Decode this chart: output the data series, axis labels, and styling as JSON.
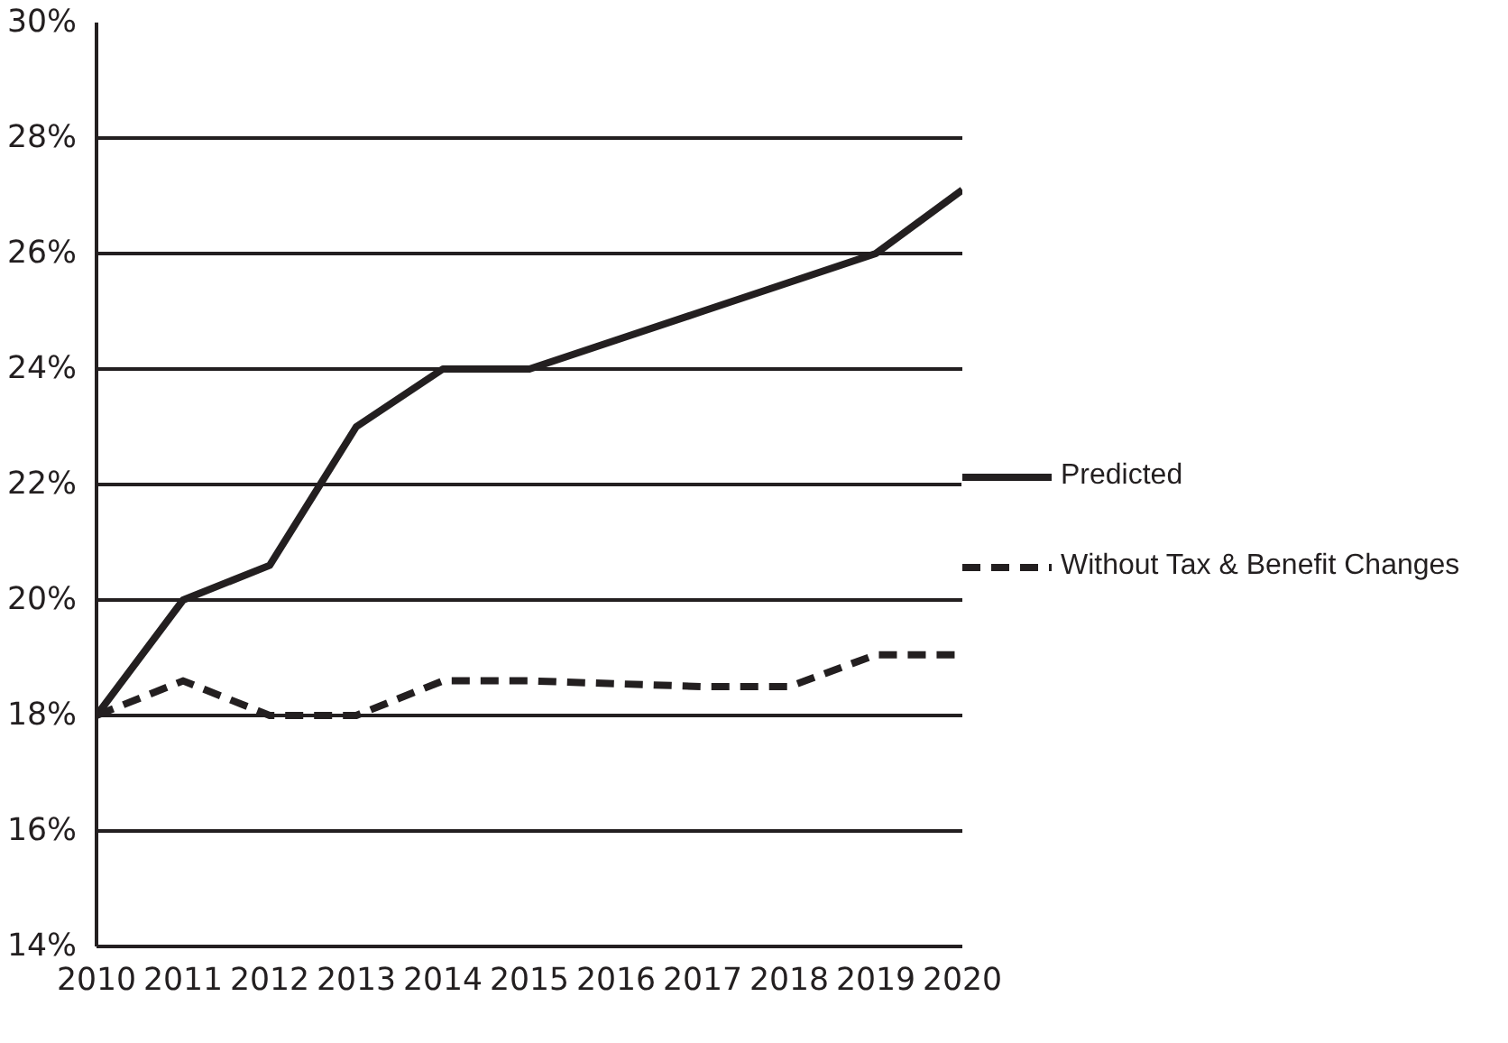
{
  "chart_data": {
    "type": "line",
    "x": [
      2010,
      2011,
      2012,
      2013,
      2014,
      2015,
      2016,
      2017,
      2018,
      2019,
      2020
    ],
    "series": [
      {
        "name": "Predicted",
        "color": "#231f20",
        "line_style": "solid",
        "values": [
          18,
          20,
          20.6,
          23,
          24,
          24,
          24.5,
          25,
          25.5,
          26,
          27.1
        ]
      },
      {
        "name": "Without Tax & Benefit Changes",
        "color": "#231f20",
        "line_style": "dashed",
        "values": [
          18,
          18.6,
          18,
          18,
          18.6,
          18.6,
          18.55,
          18.5,
          18.5,
          19.05,
          19.05
        ]
      }
    ],
    "xlim": [
      2010,
      2020
    ],
    "xticks": [
      2010,
      2011,
      2012,
      2013,
      2014,
      2015,
      2016,
      2017,
      2018,
      2019,
      2020
    ],
    "ylim": [
      14,
      30
    ],
    "yticks": [
      {
        "value": 14,
        "label": "14%"
      },
      {
        "value": 16,
        "label": "16%"
      },
      {
        "value": 18,
        "label": "18%"
      },
      {
        "value": 20,
        "label": "20%"
      },
      {
        "value": 22,
        "label": "22%"
      },
      {
        "value": 24,
        "label": "24%"
      },
      {
        "value": 26,
        "label": "26%"
      },
      {
        "value": 28,
        "label": "28%"
      },
      {
        "value": 30,
        "label": "30%"
      }
    ],
    "grid": "y",
    "legend": "right"
  }
}
